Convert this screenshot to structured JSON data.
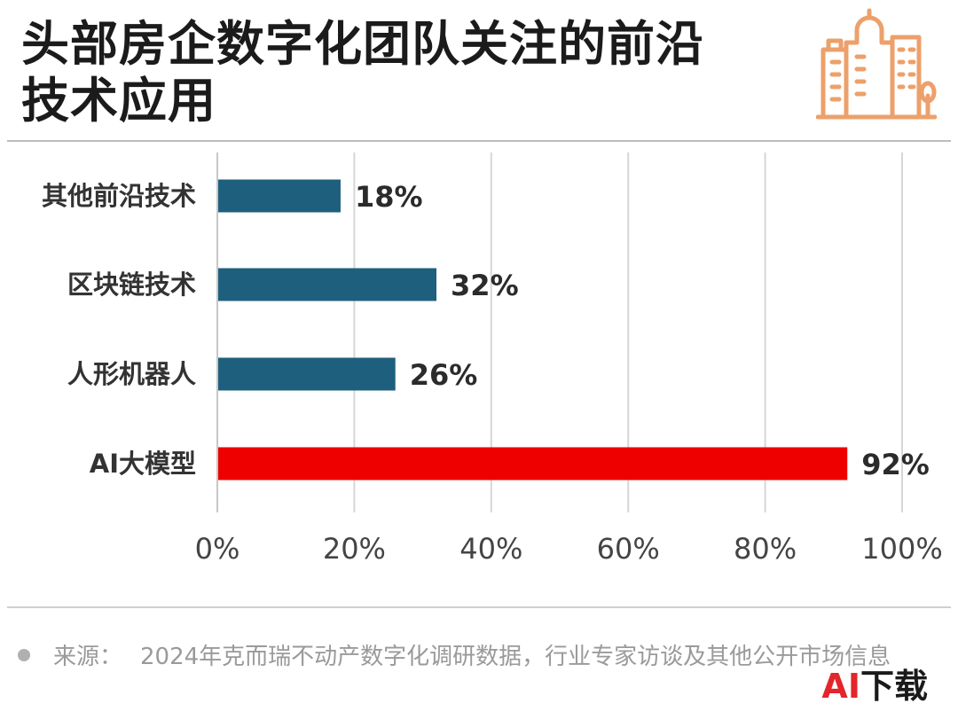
{
  "title": {
    "line1": "头部房企数字化团队关注的前沿",
    "line2": "技术应用"
  },
  "colors": {
    "bar_default": "#1f5f7e",
    "bar_highlight": "#ee0000",
    "logo": "#eda06b",
    "grid": "#d6d6d6"
  },
  "logo": {
    "icon": "buildings-icon"
  },
  "chart_data": {
    "type": "bar",
    "orientation": "horizontal",
    "categories": [
      "其他前沿技术",
      "区块链技术",
      "人形机器人",
      "AI大模型"
    ],
    "values": [
      18,
      32,
      26,
      92
    ],
    "value_labels": [
      "18%",
      "32%",
      "26%",
      "92%"
    ],
    "highlight_index": 3,
    "xlim": [
      0,
      100
    ],
    "xticks": [
      0,
      20,
      40,
      60,
      80,
      100
    ],
    "xtick_labels": [
      "0%",
      "20%",
      "40%",
      "60%",
      "80%",
      "100%"
    ],
    "grid": "vertical",
    "title": "",
    "xlabel": "",
    "ylabel": ""
  },
  "footer": {
    "source_label": "来源：",
    "source_text": "2024年克而瑞不动产数字化调研数据，行业专家访谈及其他公开市场信息",
    "badge_part1": "AI",
    "badge_part2": "下载"
  }
}
